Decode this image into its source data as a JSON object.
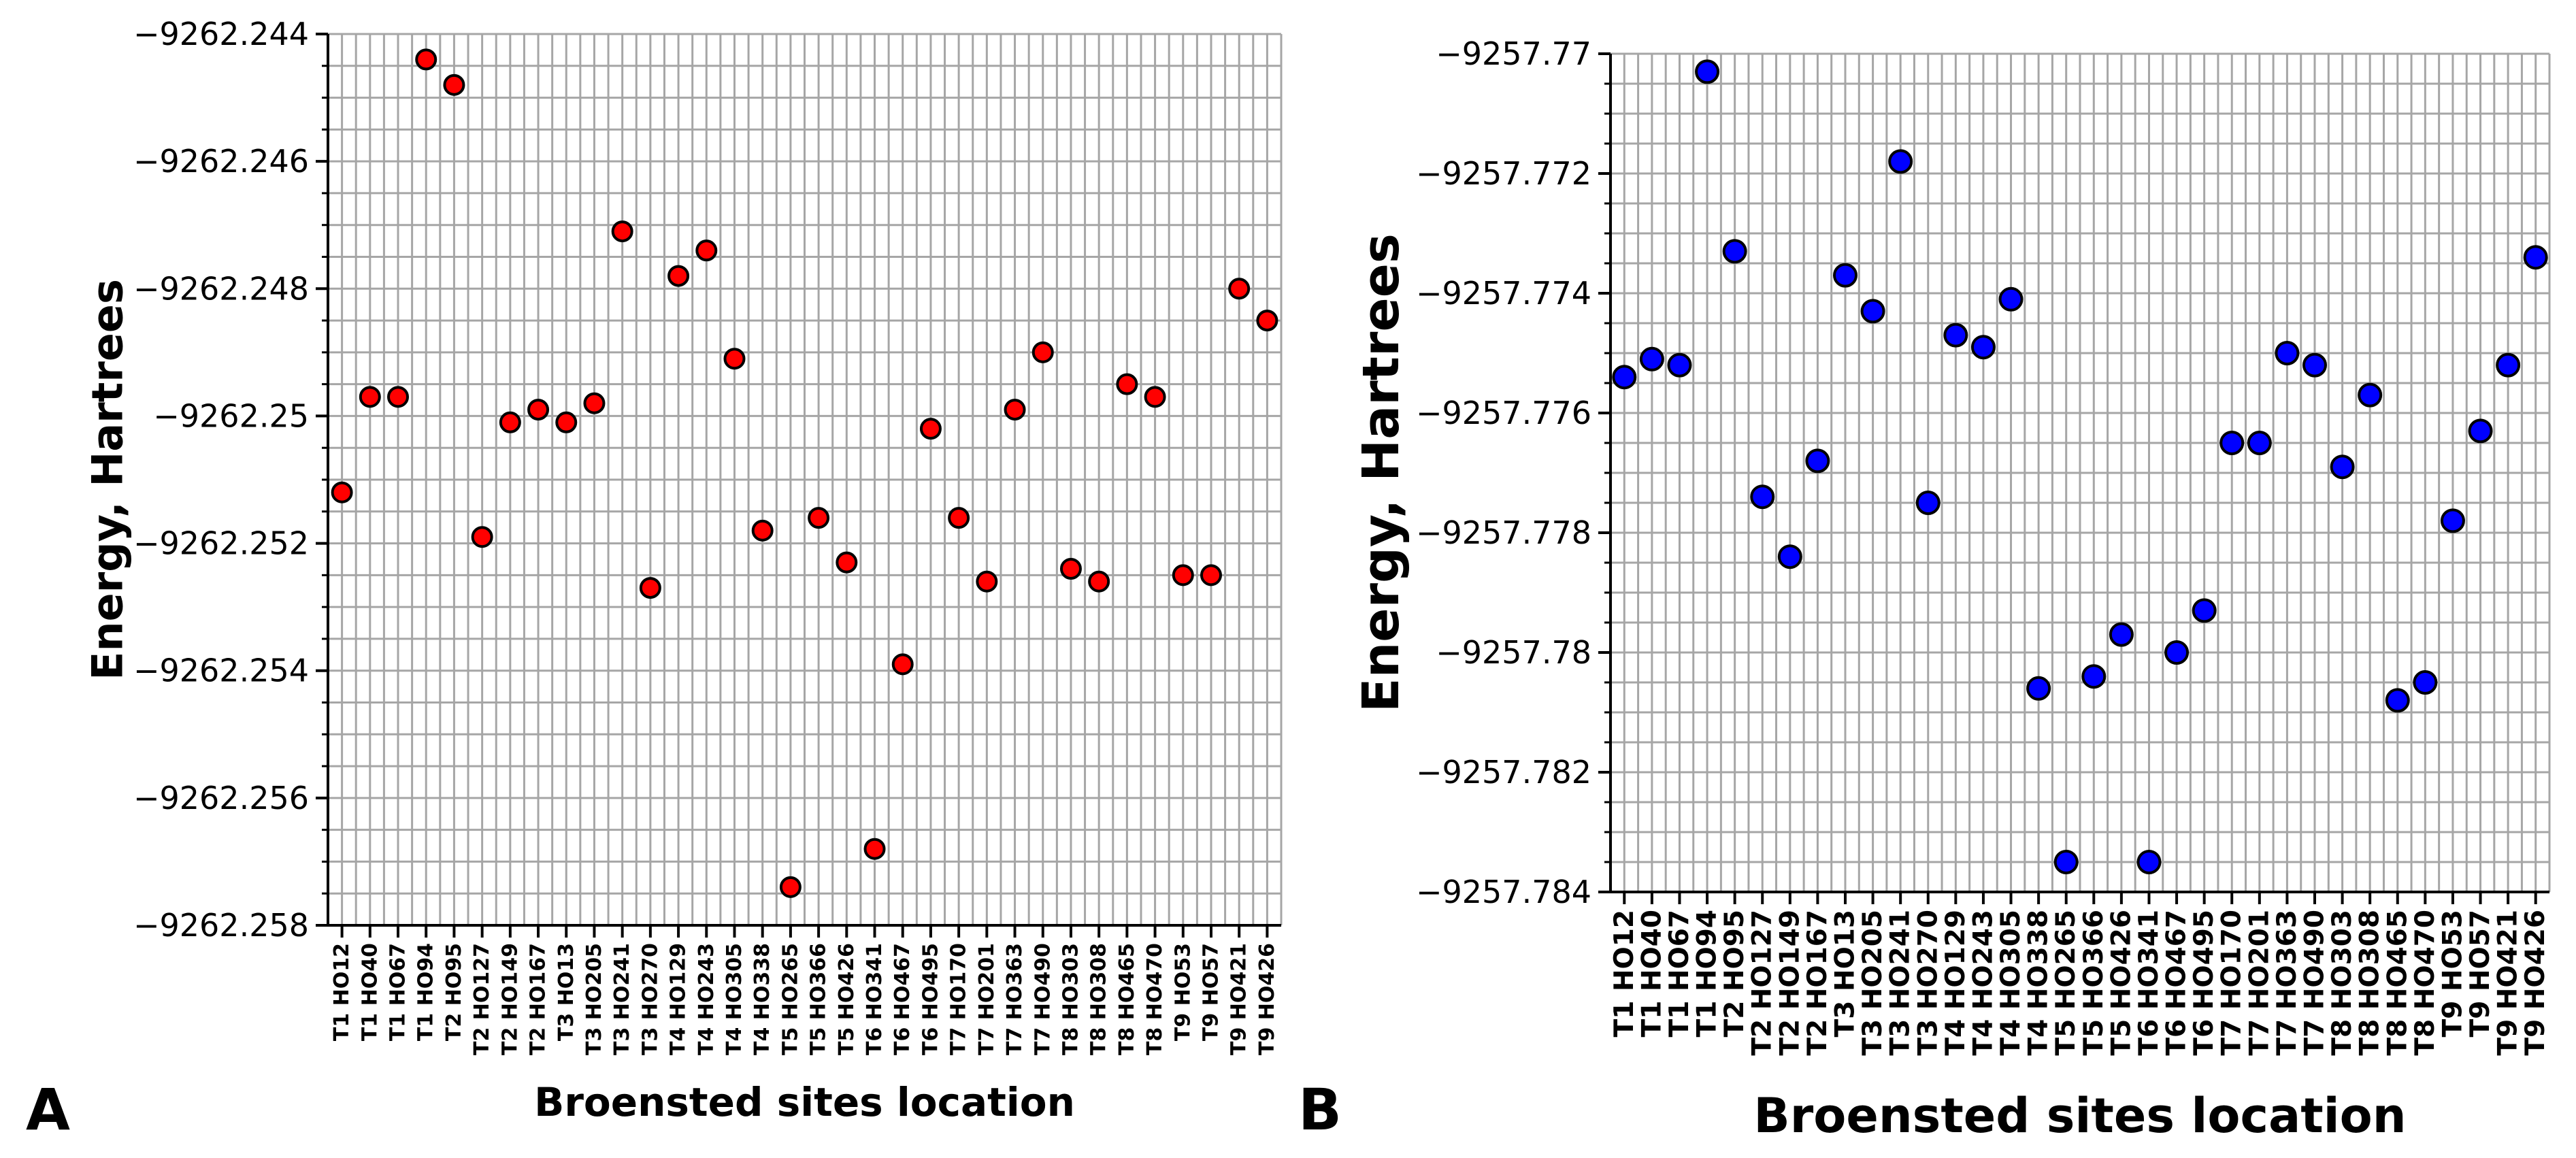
{
  "chart_data": [
    {
      "panel_label": "A",
      "type": "scatter",
      "title": "",
      "xlabel": "Broensted sites location",
      "ylabel": "Energy, Hartrees",
      "marker_color": "#ff0000",
      "edge_color": "#000000",
      "grid": true,
      "ylim": [
        -9262.258,
        -9262.244
      ],
      "yticks": [
        -9262.244,
        -9262.246,
        -9262.248,
        -9262.25,
        -9262.252,
        -9262.254,
        -9262.256,
        -9262.258
      ],
      "ytick_labels": [
        "−9262.244",
        "−9262.246",
        "−9262.248",
        "−9262.25",
        "−9262.252",
        "−9262.254",
        "−9262.256",
        "−9262.258"
      ],
      "categories": [
        "T1 HO12",
        "T1 HO40",
        "T1 HO67",
        "T1 HO94",
        "T2 HO95",
        "T2 HO127",
        "T2 HO149",
        "T2 HO167",
        "T3 HO13",
        "T3 HO205",
        "T3 HO241",
        "T3 HO270",
        "T4 HO129",
        "T4 HO243",
        "T4 HO305",
        "T4 HO338",
        "T5 HO265",
        "T5 HO366",
        "T5 HO426",
        "T6 HO341",
        "T6 HO467",
        "T6 HO495",
        "T7 HO170",
        "T7 HO201",
        "T7 HO363",
        "T7 HO490",
        "T8 HO303",
        "T8 HO308",
        "T8 HO465",
        "T8 HO470",
        "T9 HO53",
        "T9 HO57",
        "T9 HO421",
        "T9 HO426"
      ],
      "values": [
        -9262.2512,
        -9262.2497,
        -9262.2497,
        -9262.2444,
        -9262.2448,
        -9262.2519,
        -9262.2501,
        -9262.2499,
        -9262.2501,
        -9262.2498,
        -9262.2471,
        -9262.2527,
        -9262.2478,
        -9262.2474,
        -9262.2491,
        -9262.2518,
        -9262.2574,
        -9262.2516,
        -9262.2523,
        -9262.2568,
        -9262.2539,
        -9262.2502,
        -9262.2516,
        -9262.2526,
        -9262.2499,
        -9262.249,
        -9262.2524,
        -9262.2526,
        -9262.2495,
        -9262.2497,
        -9262.2525,
        -9262.2525,
        -9262.248,
        -9262.2485
      ]
    },
    {
      "panel_label": "B",
      "type": "scatter",
      "title": "",
      "xlabel": "Broensted sites location",
      "ylabel": "Energy, Hartrees",
      "marker_color": "#0000ff",
      "edge_color": "#000000",
      "grid": true,
      "ylim": [
        -9257.784,
        -9257.77
      ],
      "yticks": [
        -9257.77,
        -9257.772,
        -9257.774,
        -9257.776,
        -9257.778,
        -9257.78,
        -9257.782,
        -9257.784
      ],
      "ytick_labels": [
        "−9257.77",
        "−9257.772",
        "−9257.774",
        "−9257.776",
        "−9257.778",
        "−9257.78",
        "−9257.782",
        "−9257.784"
      ],
      "categories": [
        "T1 HO12",
        "T1 HO40",
        "T1 HO67",
        "T1 HO94",
        "T2 HO95",
        "T2 HO127",
        "T2 HO149",
        "T2 HO167",
        "T3 HO13",
        "T3 HO205",
        "T3 HO241",
        "T3 HO270",
        "T4 HO129",
        "T4 HO243",
        "T4 HO305",
        "T4 HO338",
        "T5 HO265",
        "T5 HO366",
        "T5 HO426",
        "T6 HO341",
        "T6 HO467",
        "T6 HO495",
        "T7 HO170",
        "T7 HO201",
        "T7 HO363",
        "T7 HO490",
        "T8 HO303",
        "T8 HO308",
        "T8 HO465",
        "T8 HO470",
        "T9 HO53",
        "T9 HO57",
        "T9 HO421",
        "T9 HO426"
      ],
      "values": [
        -9257.7754,
        -9257.7751,
        -9257.7752,
        -9257.7703,
        -9257.7733,
        -9257.7774,
        -9257.7784,
        -9257.7768,
        -9257.7737,
        -9257.7743,
        -9257.7718,
        -9257.7775,
        -9257.7747,
        -9257.7749,
        -9257.7741,
        -9257.7806,
        -9257.7835,
        -9257.7804,
        -9257.7797,
        -9257.7835,
        -9257.78,
        -9257.7793,
        -9257.7765,
        -9257.7765,
        -9257.775,
        -9257.7752,
        -9257.7769,
        -9257.7757,
        -9257.7808,
        -9257.7805,
        -9257.7778,
        -9257.7763,
        -9257.7752,
        -9257.7734
      ]
    }
  ]
}
